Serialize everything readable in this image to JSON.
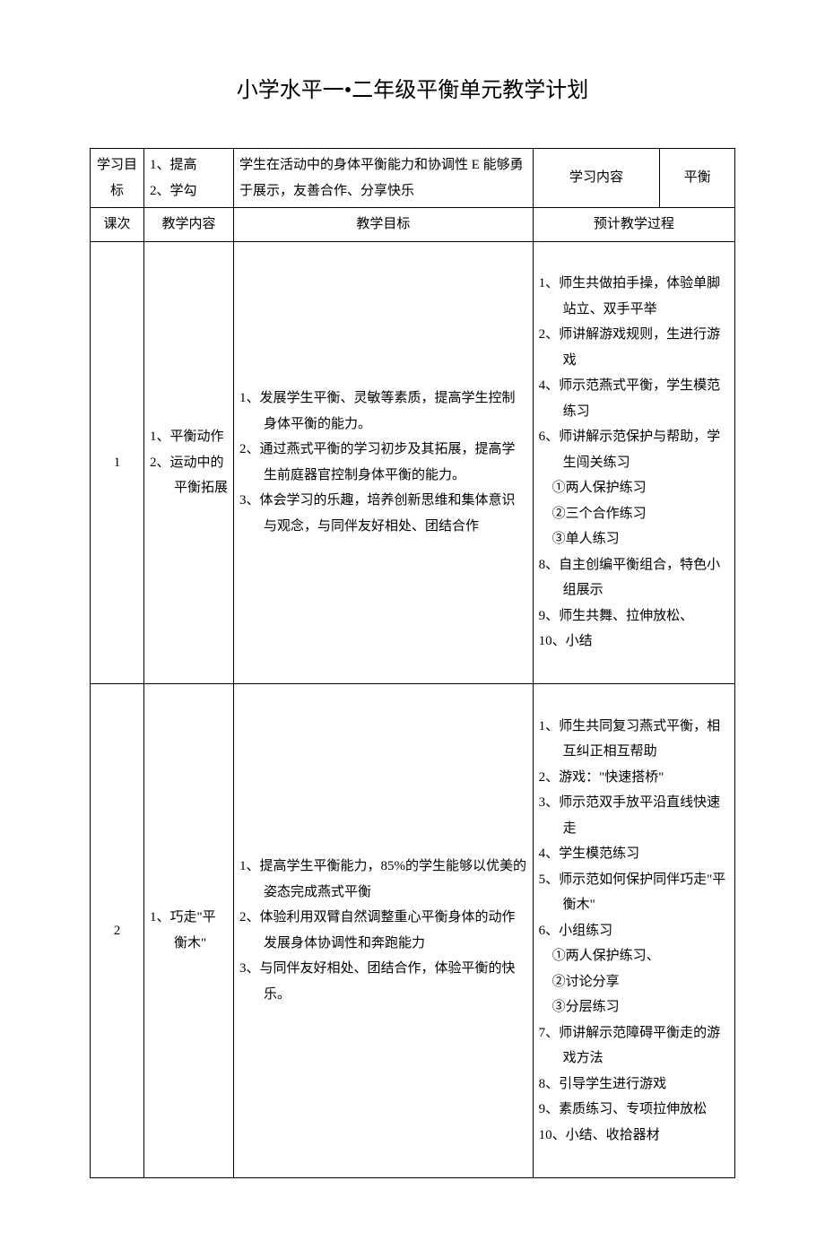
{
  "title": "小学水平一•二年级平衡单元教学计划",
  "header": {
    "col1_label": "学习目标",
    "col1_content": "1、提高\n2、学勾",
    "col2_content": "学生在活动中的身体平衡能力和协调性 E 能够勇于展示，友善合作、分享快乐",
    "col3_label": "学习内容",
    "col4_content": "平衡"
  },
  "columns": {
    "c1": "课次",
    "c2": "教学内容",
    "c3": "教学目标",
    "c4": "预计教学过程"
  },
  "lessons": [
    {
      "num": "1",
      "content": [
        "1、平衡动作",
        "2、运动中的平衡拓展"
      ],
      "goals": [
        "1、发展学生平衡、灵敏等素质，提高学生控制身体平衡的能力。",
        "2、通过燕式平衡的学习初步及其拓展，提高学生前庭器官控制身体平衡的能力。",
        "3、体会学习的乐趣，培养创新思维和集体意识与观念，与同伴友好相处、团结合作"
      ],
      "process": [
        "1、师生共做拍手操，体验单脚站立、双手平举",
        "2、师讲解游戏规则，生进行游戏",
        "4、师示范燕式平衡，学生模范练习",
        "6、师讲解示范保护与帮助，学生闯关练习",
        "　①两人保护练习",
        "　②三个合作练习",
        "　③单人练习",
        "8、自主创编平衡组合，特色小组展示",
        "9、师生共舞、拉伸放松、",
        "10、小结"
      ]
    },
    {
      "num": "2",
      "content": [
        "1、巧走\"平衡木\""
      ],
      "goals": [
        "1、提高学生平衡能力，85%的学生能够以优美的姿态完成燕式平衡",
        "2、体验利用双臂自然调整重心平衡身体的动作发展身体协调性和奔跑能力",
        "3、与同伴友好相处、团结合作，体验平衡的快乐。"
      ],
      "process": [
        "1、师生共同复习燕式平衡，相互纠正相互帮助",
        "2、游戏：\"快速搭桥\"",
        "3、师示范双手放平沿直线快速走",
        "4、学生模范练习",
        "5、师示范如何保护同伴巧走\"平衡木\"",
        "6、小组练习",
        "　①两人保护练习、",
        "　②讨论分享",
        "　③分层练习",
        "7、师讲解示范障碍平衡走的游戏方法",
        "8、引导学生进行游戏",
        "9、素质练习、专项拉伸放松",
        "10、小结、收拾器材"
      ]
    }
  ]
}
